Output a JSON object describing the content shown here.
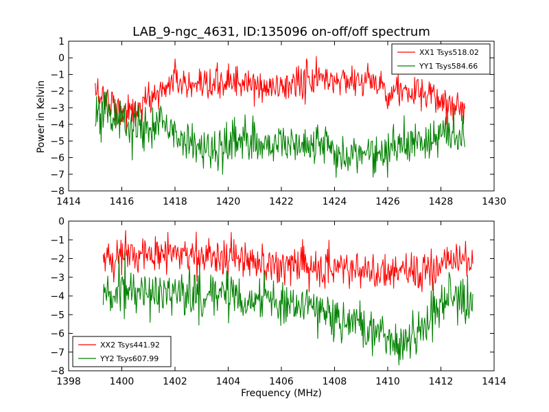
{
  "figure": {
    "title": "LAB_9-ngc_4631, ID:135096 on-off/off spectrum",
    "ylabel": "Power in Kelvin",
    "xlabel": "Frequency (MHz)"
  },
  "chart_data": [
    {
      "type": "line",
      "title": "LAB_9-ngc_4631, ID:135096 on-off/off spectrum",
      "xlabel": "",
      "ylabel": "Power in Kelvin",
      "xlim": [
        1414,
        1430
      ],
      "ylim": [
        -8,
        1
      ],
      "xticks": [
        1414,
        1416,
        1418,
        1420,
        1422,
        1424,
        1426,
        1428,
        1430
      ],
      "yticks": [
        1,
        0,
        -1,
        -2,
        -3,
        -4,
        -5,
        -6,
        -7,
        -8
      ],
      "grid": false,
      "legend_position": "top-right",
      "x": [
        1415.0,
        1415.5,
        1416.0,
        1416.5,
        1417.0,
        1417.5,
        1418.0,
        1418.5,
        1419.0,
        1419.5,
        1420.0,
        1420.5,
        1421.0,
        1421.5,
        1422.0,
        1422.5,
        1423.0,
        1423.5,
        1424.0,
        1424.5,
        1425.0,
        1425.5,
        1426.0,
        1426.5,
        1427.0,
        1427.5,
        1428.0,
        1428.5,
        1428.9
      ],
      "series": [
        {
          "name": "XX1 Tsys518.02",
          "color": "#ff0000",
          "values": [
            -2.0,
            -2.5,
            -3.2,
            -3.3,
            -2.5,
            -2.0,
            -1.2,
            -1.8,
            -2.0,
            -1.7,
            -1.3,
            -1.6,
            -1.7,
            -1.9,
            -1.7,
            -1.5,
            -1.4,
            -1.2,
            -1.4,
            -1.3,
            -1.3,
            -1.5,
            -1.9,
            -2.0,
            -2.2,
            -2.3,
            -2.6,
            -2.8,
            -3.0
          ]
        },
        {
          "name": "YY1 Tsys584.66",
          "color": "#008000",
          "values": [
            -3.5,
            -3.4,
            -4.0,
            -4.3,
            -4.2,
            -3.9,
            -4.4,
            -5.0,
            -5.6,
            -5.5,
            -5.2,
            -5.0,
            -5.1,
            -5.3,
            -5.0,
            -5.1,
            -5.3,
            -5.0,
            -5.5,
            -5.8,
            -5.9,
            -5.8,
            -5.7,
            -5.2,
            -5.0,
            -5.3,
            -4.8,
            -4.5,
            -4.5
          ]
        }
      ]
    },
    {
      "type": "line",
      "title": "",
      "xlabel": "Frequency (MHz)",
      "ylabel": "",
      "xlim": [
        1398,
        1414
      ],
      "ylim": [
        -8,
        0
      ],
      "xticks": [
        1398,
        1400,
        1402,
        1404,
        1406,
        1408,
        1410,
        1412,
        1414
      ],
      "yticks": [
        0,
        -1,
        -2,
        -3,
        -4,
        -5,
        -6,
        -7,
        -8
      ],
      "grid": false,
      "legend_position": "bottom-left",
      "x": [
        1399.3,
        1399.8,
        1400.3,
        1400.8,
        1401.3,
        1401.8,
        1402.3,
        1402.8,
        1403.3,
        1403.8,
        1404.3,
        1404.8,
        1405.3,
        1405.8,
        1406.3,
        1406.8,
        1407.3,
        1407.8,
        1408.3,
        1408.8,
        1409.3,
        1409.8,
        1410.3,
        1410.8,
        1411.3,
        1411.8,
        1412.3,
        1412.8,
        1413.2
      ],
      "series": [
        {
          "name": "XX2 Tsys441.92",
          "color": "#ff0000",
          "values": [
            -2.2,
            -2.0,
            -1.6,
            -1.8,
            -1.7,
            -1.6,
            -1.7,
            -1.9,
            -2.0,
            -1.9,
            -1.9,
            -2.1,
            -2.4,
            -2.5,
            -2.3,
            -2.4,
            -2.5,
            -2.6,
            -2.6,
            -2.5,
            -2.7,
            -2.8,
            -2.7,
            -2.6,
            -2.9,
            -2.7,
            -2.3,
            -2.2,
            -2.0
          ]
        },
        {
          "name": "YY2 Tsys607.99",
          "color": "#008000",
          "values": [
            -4.0,
            -3.8,
            -3.6,
            -3.9,
            -3.7,
            -3.8,
            -4.0,
            -4.2,
            -4.0,
            -3.9,
            -4.1,
            -4.3,
            -4.2,
            -4.2,
            -4.4,
            -4.6,
            -4.6,
            -5.2,
            -5.4,
            -5.6,
            -6.0,
            -6.3,
            -6.5,
            -6.2,
            -5.6,
            -4.7,
            -4.3,
            -4.1,
            -4.1
          ]
        }
      ]
    }
  ]
}
